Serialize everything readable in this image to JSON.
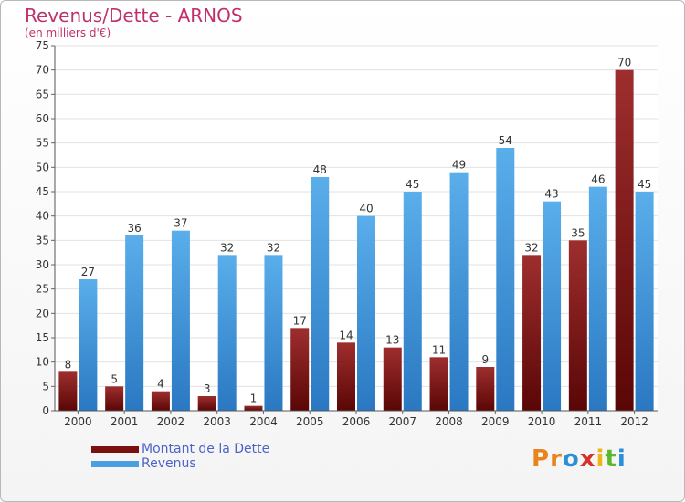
{
  "header": {
    "title": "Revenus/Dette - ARNOS",
    "subtitle": "(en milliers d'€)"
  },
  "colors": {
    "debt": "#8b1a1a",
    "revenue": "#4a9fe3",
    "title": "#c0306a",
    "legend_text": "#4a64c8"
  },
  "legend": {
    "position": "bottom-left",
    "items": [
      {
        "label": "Montant de la Dette",
        "color": "#7a1010"
      },
      {
        "label": "Revenus",
        "color": "#4a9fe3"
      }
    ]
  },
  "logo": {
    "text": "Proxiti",
    "letter_colors": [
      "#e8841a",
      "#e8841a",
      "#2a8fd8",
      "#d8302a",
      "#f0b418",
      "#5ab82a",
      "#2a8fd8"
    ]
  },
  "chart_data": {
    "type": "bar",
    "categories": [
      "2000",
      "2001",
      "2002",
      "2003",
      "2004",
      "2005",
      "2006",
      "2007",
      "2008",
      "2009",
      "2010",
      "2011",
      "2012"
    ],
    "series": [
      {
        "name": "Montant de la Dette",
        "values": [
          8,
          5,
          4,
          3,
          1,
          17,
          14,
          13,
          11,
          9,
          32,
          35,
          70
        ]
      },
      {
        "name": "Revenus",
        "values": [
          27,
          36,
          37,
          32,
          32,
          48,
          40,
          45,
          49,
          54,
          43,
          46,
          45
        ]
      }
    ],
    "title": "Revenus/Dette - ARNOS",
    "subtitle": "(en milliers d'€)",
    "ylim": [
      0,
      75
    ],
    "yticks": [
      0,
      5,
      10,
      15,
      20,
      25,
      30,
      35,
      40,
      45,
      50,
      55,
      60,
      65,
      70,
      75
    ],
    "grid": true,
    "legend": "bottom-left"
  }
}
